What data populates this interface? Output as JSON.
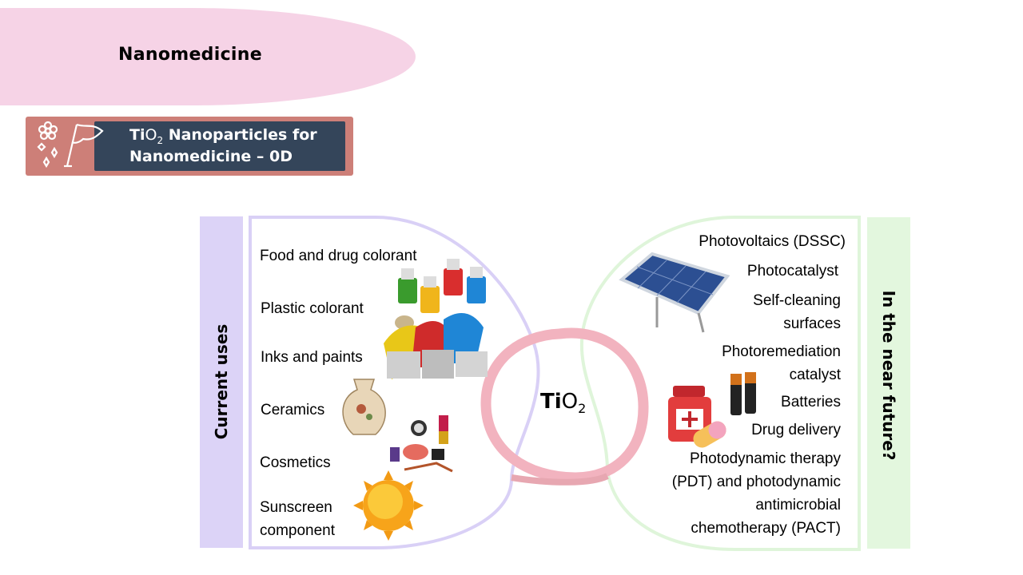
{
  "header": {
    "title": "Nanomedicine"
  },
  "badge": {
    "line1_prefix": "Ti",
    "line1_o": "O",
    "line1_sub": "2",
    "line1_suffix": " Nanoparticles for",
    "line2": "Nanomedicine – 0D"
  },
  "left_panel": {
    "label": "Current uses",
    "items": [
      "Food and drug colorant",
      "Plastic colorant",
      "Inks and paints",
      "Ceramics",
      "Cosmetics",
      "Sunscreen",
      "component"
    ]
  },
  "center": {
    "label_bold": "Ti",
    "label_o": "O",
    "label_sub": "2"
  },
  "right_panel": {
    "label": "In the near future?",
    "items": [
      "Photovoltaics (DSSC)",
      "Photocatalyst",
      "Self-cleaning",
      "surfaces",
      "Photoremediation",
      "catalyst",
      "Batteries",
      "Drug delivery",
      "Photodynamic therapy",
      "(PDT) and photodynamic",
      "antimicrobial",
      "chemotherapy (PACT)"
    ]
  },
  "colors": {
    "banner": "#f6d3e6",
    "badge_outer": "#cd7f78",
    "badge_inner": "#34455a",
    "left_bar": "#dcd3f7",
    "right_bar": "#e3f7de",
    "loop": "#f2b3bf"
  }
}
